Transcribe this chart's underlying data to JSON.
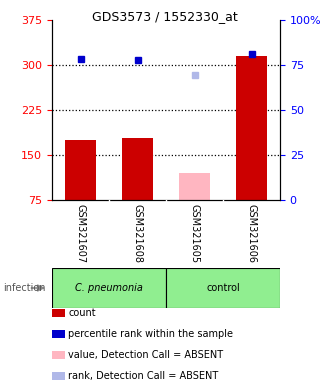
{
  "title": "GDS3573 / 1552330_at",
  "samples": [
    "GSM321607",
    "GSM321608",
    "GSM321605",
    "GSM321606"
  ],
  "bar_values": [
    175,
    178,
    120,
    315
  ],
  "bar_colors": [
    "#cc0000",
    "#cc0000",
    "#ffb6c1",
    "#cc0000"
  ],
  "rank_values": [
    310,
    308,
    null,
    318
  ],
  "rank_color_present": "#0000cc",
  "rank_absent_value": 284,
  "rank_absent_color": "#b0b8e8",
  "ylim_left": [
    75,
    375
  ],
  "ylim_right": [
    0,
    100
  ],
  "yticks_left": [
    75,
    150,
    225,
    300,
    375
  ],
  "ytick_labels_left": [
    "75",
    "150",
    "225",
    "300",
    "375"
  ],
  "yticks_right_vals": [
    0,
    25,
    50,
    75,
    100
  ],
  "ytick_labels_right": [
    "0",
    "25",
    "50",
    "75",
    "100%"
  ],
  "hlines": [
    150,
    225,
    300
  ],
  "group_left_label": "C. pneumonia",
  "group_right_label": "control",
  "group_color": "#90EE90",
  "label_area_color": "#cccccc",
  "infection_label": "infection",
  "legend_items": [
    {
      "label": "count",
      "color": "#cc0000"
    },
    {
      "label": "percentile rank within the sample",
      "color": "#0000cc"
    },
    {
      "label": "value, Detection Call = ABSENT",
      "color": "#ffb6c1"
    },
    {
      "label": "rank, Detection Call = ABSENT",
      "color": "#b0b8e8"
    }
  ],
  "background_color": "#ffffff",
  "title_fontsize": 9,
  "axis_fontsize": 8,
  "label_fontsize": 7,
  "legend_fontsize": 7
}
